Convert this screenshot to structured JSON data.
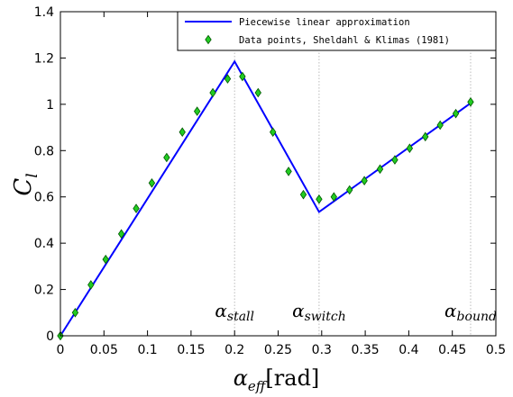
{
  "chart_data": {
    "type": "line",
    "xlabel": {
      "base": "α",
      "sub": "eff",
      "unit": "[rad]"
    },
    "ylabel": {
      "base": "C",
      "sub": "l"
    },
    "xlim": [
      0,
      0.5
    ],
    "ylim": [
      0,
      1.4
    ],
    "xticks": [
      "0",
      "0.05",
      "0.1",
      "0.15",
      "0.2",
      "0.25",
      "0.3",
      "0.35",
      "0.4",
      "0.45",
      "0.5"
    ],
    "yticks": [
      "0",
      "0.2",
      "0.4",
      "0.6",
      "0.8",
      "1",
      "1.2",
      "1.4"
    ],
    "grid": false,
    "legend_position": "top-right",
    "series": [
      {
        "name": "Piecewise linear approximation",
        "kind": "line",
        "color": "#0000ff",
        "x": [
          0,
          0.2,
          0.297,
          0.471
        ],
        "y": [
          0,
          1.185,
          0.535,
          1.005
        ]
      },
      {
        "name": "Data points, Sheldahl & Klimas (1981)",
        "kind": "scatter",
        "marker": "diamond",
        "color": "#22cc22",
        "x": [
          0,
          0.017,
          0.035,
          0.052,
          0.07,
          0.087,
          0.105,
          0.122,
          0.14,
          0.157,
          0.175,
          0.192,
          0.209,
          0.227,
          0.244,
          0.262,
          0.279,
          0.297,
          0.314,
          0.332,
          0.349,
          0.367,
          0.384,
          0.401,
          0.419,
          0.436,
          0.454,
          0.471
        ],
        "y": [
          0,
          0.1,
          0.22,
          0.33,
          0.44,
          0.55,
          0.66,
          0.77,
          0.88,
          0.97,
          1.05,
          1.11,
          1.12,
          1.05,
          0.88,
          0.71,
          0.61,
          0.59,
          0.6,
          0.63,
          0.67,
          0.72,
          0.76,
          0.81,
          0.86,
          0.91,
          0.96,
          1.01
        ]
      }
    ],
    "reference_lines": [
      {
        "x": 0.2,
        "label": {
          "base": "α",
          "sub": "stall"
        }
      },
      {
        "x": 0.297,
        "label": {
          "base": "α",
          "sub": "switch"
        }
      },
      {
        "x": 0.471,
        "label": {
          "base": "α",
          "sub": "bound"
        }
      }
    ]
  }
}
